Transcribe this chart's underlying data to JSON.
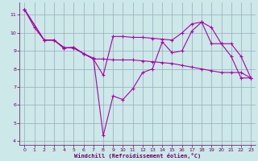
{
  "background_color": "#cce8e8",
  "line_color": "#aa00aa",
  "grid_color": "#99aabb",
  "xlabel": "Windchill (Refroidissement éolien,°C)",
  "xlabel_color": "#660066",
  "tick_color": "#660066",
  "ylim": [
    3.8,
    11.7
  ],
  "xlim": [
    -0.5,
    23.5
  ],
  "yticks": [
    4,
    5,
    6,
    7,
    8,
    9,
    10,
    11
  ],
  "xticks": [
    0,
    1,
    2,
    3,
    4,
    5,
    6,
    7,
    8,
    9,
    10,
    11,
    12,
    13,
    14,
    15,
    16,
    17,
    18,
    19,
    20,
    21,
    22,
    23
  ],
  "line1_x": [
    0,
    1,
    2,
    3,
    4,
    5,
    6,
    7,
    8,
    9,
    10,
    11,
    12,
    13,
    14,
    15,
    16,
    17,
    18,
    19,
    20,
    21,
    22,
    23
  ],
  "line1_y": [
    11.3,
    10.3,
    9.6,
    9.6,
    9.2,
    9.15,
    8.85,
    8.6,
    4.3,
    6.5,
    6.3,
    6.9,
    7.8,
    8.0,
    9.5,
    8.9,
    9.0,
    10.1,
    10.6,
    9.4,
    9.4,
    8.7,
    7.5,
    7.5
  ],
  "line2_x": [
    0,
    2,
    3,
    4,
    5,
    6,
    7,
    8,
    9,
    10,
    11,
    12,
    13,
    14,
    15,
    16,
    17,
    18,
    19,
    20,
    21,
    22,
    23
  ],
  "line2_y": [
    11.3,
    9.6,
    9.6,
    9.15,
    9.2,
    8.85,
    8.55,
    8.55,
    8.5,
    8.5,
    8.5,
    8.45,
    8.4,
    8.35,
    8.3,
    8.2,
    8.1,
    8.0,
    7.9,
    7.8,
    7.8,
    7.8,
    7.5
  ],
  "line3_x": [
    0,
    2,
    3,
    4,
    5,
    6,
    7,
    8,
    9,
    10,
    11,
    12,
    13,
    14,
    15,
    16,
    17,
    18,
    19,
    20,
    21,
    22,
    23
  ],
  "line3_y": [
    11.3,
    9.6,
    9.6,
    9.15,
    9.2,
    8.85,
    8.55,
    7.65,
    9.8,
    9.8,
    9.75,
    9.75,
    9.7,
    9.65,
    9.6,
    10.0,
    10.5,
    10.6,
    10.3,
    9.4,
    9.4,
    8.7,
    7.5
  ]
}
